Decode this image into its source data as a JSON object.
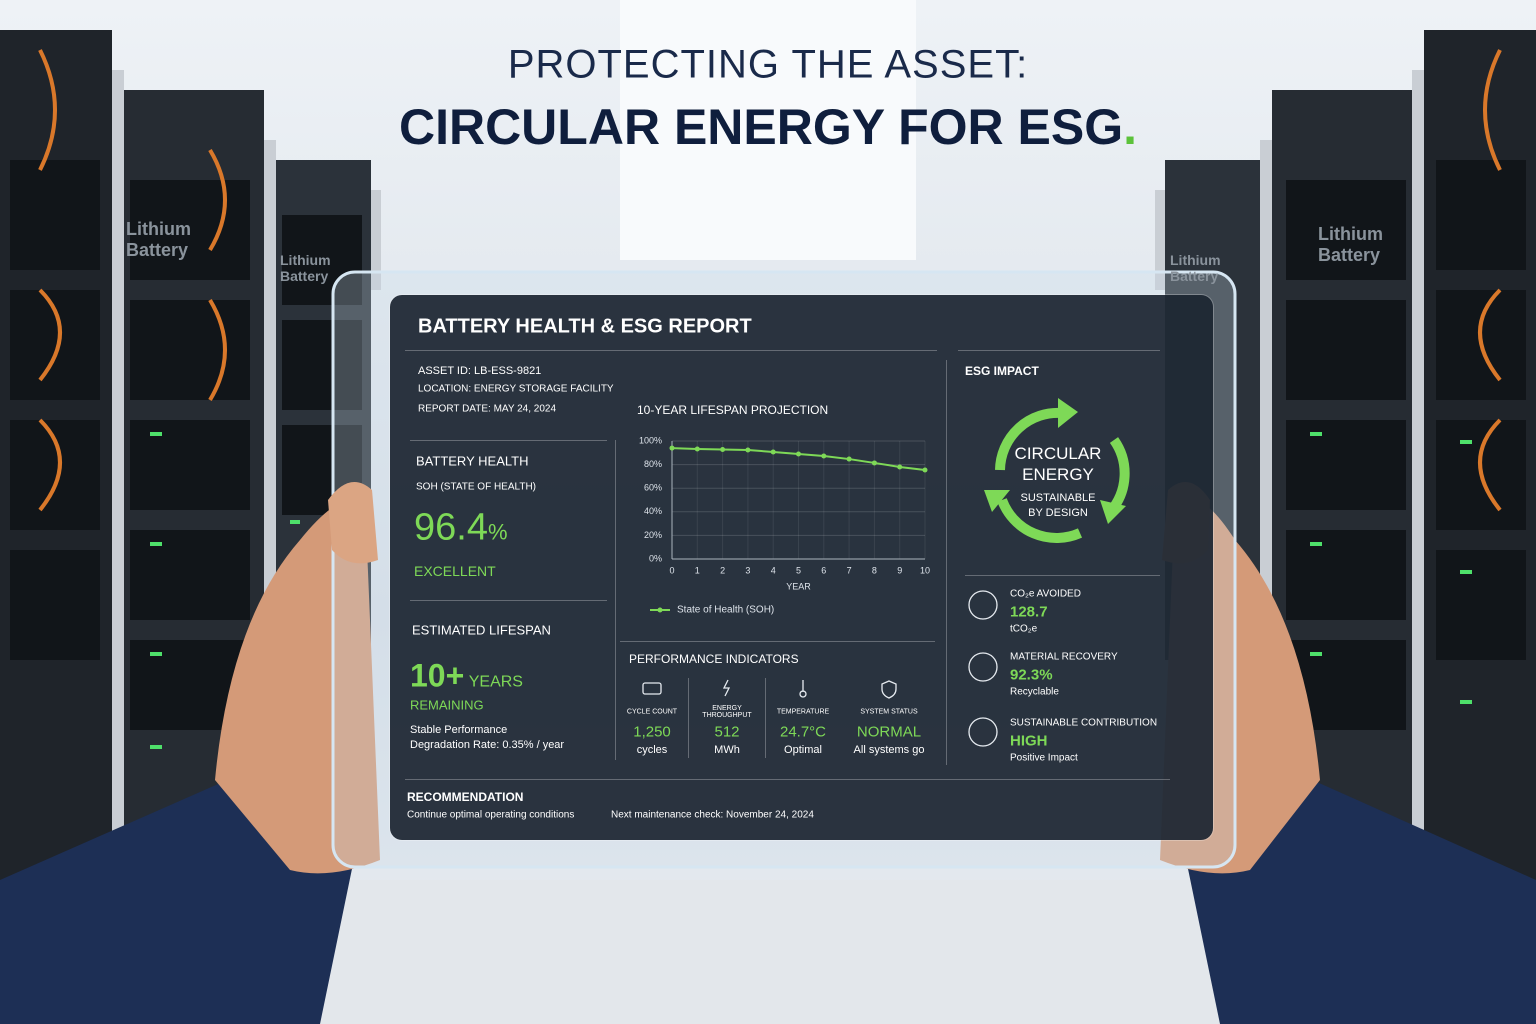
{
  "header": {
    "line1": "PROTECTING THE ASSET:",
    "line2": "CIRCULAR ENERGY FOR ESG",
    "dot": "."
  },
  "rack_labels": [
    "Lithium Battery",
    "Lithium Battery",
    "Lithium Battery",
    "Lithium Battery"
  ],
  "report": {
    "title": "BATTERY HEALTH & ESG REPORT",
    "asset_id": "ASSET ID: LB-ESS-9821",
    "location": "LOCATION: ENERGY STORAGE FACILITY",
    "report_date": "REPORT DATE: MAY 24, 2024",
    "battery_health": {
      "heading": "BATTERY HEALTH",
      "label": "SOH (STATE OF HEALTH)",
      "value": "96.4",
      "unit": "%",
      "rating": "EXCELLENT"
    },
    "lifespan": {
      "heading": "ESTIMATED LIFESPAN",
      "value": "10+",
      "unit": "YEARS",
      "status": "REMAINING",
      "note": "Stable Performance",
      "degradation": "Degradation Rate: 0.35% / year"
    },
    "performance": {
      "heading": "PERFORMANCE INDICATORS",
      "items": [
        {
          "label": "CYCLE COUNT",
          "value": "1,250",
          "unit": "cycles"
        },
        {
          "label": "ENERGY THROUGHPUT",
          "value": "512",
          "unit": "MWh"
        },
        {
          "label": "TEMPERATURE",
          "value": "24.7°C",
          "unit": "Optimal"
        },
        {
          "label": "SYSTEM STATUS",
          "value": "NORMAL",
          "unit": "All systems go"
        }
      ]
    },
    "esg": {
      "heading": "ESG IMPACT",
      "circle_line1": "CIRCULAR",
      "circle_line2": "ENERGY",
      "circle_sub1": "SUSTAINABLE",
      "circle_sub2": "BY DESIGN",
      "items": [
        {
          "label": "CO₂e AVOIDED",
          "value": "128.7",
          "unit": "tCO₂e"
        },
        {
          "label": "MATERIAL RECOVERY",
          "value": "92.3%",
          "unit": "Recyclable"
        },
        {
          "label": "SUSTAINABLE CONTRIBUTION",
          "value": "HIGH",
          "unit": "Positive Impact"
        }
      ]
    },
    "recommendation": {
      "heading": "RECOMMENDATION",
      "text": "Continue optimal operating conditions",
      "next_check": "Next maintenance check: November 24, 2024"
    }
  },
  "chart_data": {
    "type": "line",
    "title": "10-YEAR LIFESPAN PROJECTION",
    "x_label": "YEAR",
    "x": [
      0,
      1,
      2,
      3,
      4,
      5,
      6,
      7,
      8,
      9,
      10
    ],
    "series": [
      {
        "name": "State of Health (SOH)",
        "color": "#7ed957",
        "values": [
          94,
          93.2,
          92.8,
          92.4,
          90.7,
          89,
          87.3,
          84.7,
          81.4,
          78,
          75.4
        ]
      }
    ],
    "xlim": [
      0,
      10
    ],
    "xticks": [
      0,
      1,
      2,
      3,
      4,
      5,
      6,
      7,
      8,
      9,
      10
    ],
    "ylim": [
      0,
      100
    ],
    "yticks": [
      {
        "value": 0,
        "label": "0%"
      },
      {
        "value": 20,
        "label": "20%"
      },
      {
        "value": 40,
        "label": "40%"
      },
      {
        "value": 60,
        "label": "60%"
      },
      {
        "value": 80,
        "label": "80%"
      },
      {
        "value": 100,
        "label": "100%"
      }
    ],
    "grid": true
  }
}
